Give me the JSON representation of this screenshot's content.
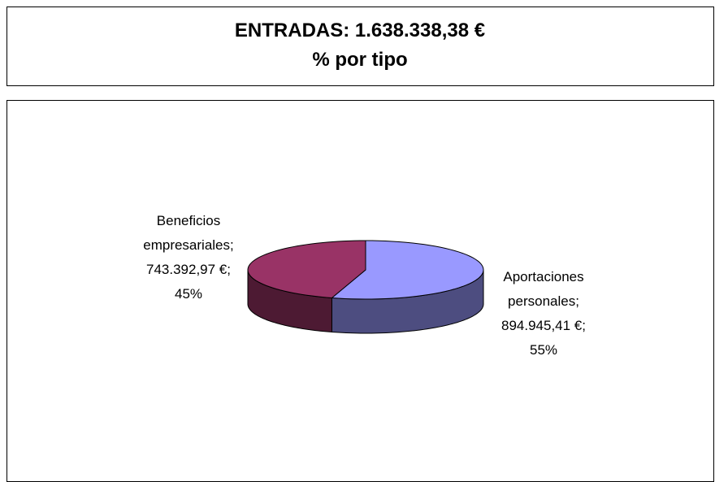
{
  "chart_data": {
    "type": "pie3d",
    "title": "ENTRADAS:  1.638.338,38 €",
    "subtitle": "% por tipo",
    "categories": [
      "Beneficios empresariales",
      "Aportaciones personales"
    ],
    "values": [
      743392.97,
      894945.41
    ],
    "value_labels": [
      "743.392,97 €",
      "894.945,41 €"
    ],
    "percents": [
      45,
      55
    ],
    "percent_labels": [
      "45%",
      "55%"
    ],
    "label_separator": ";",
    "colors": [
      "#993366",
      "#9999ff"
    ],
    "side_colors": [
      "#4d1a33",
      "#4d4d80"
    ]
  }
}
